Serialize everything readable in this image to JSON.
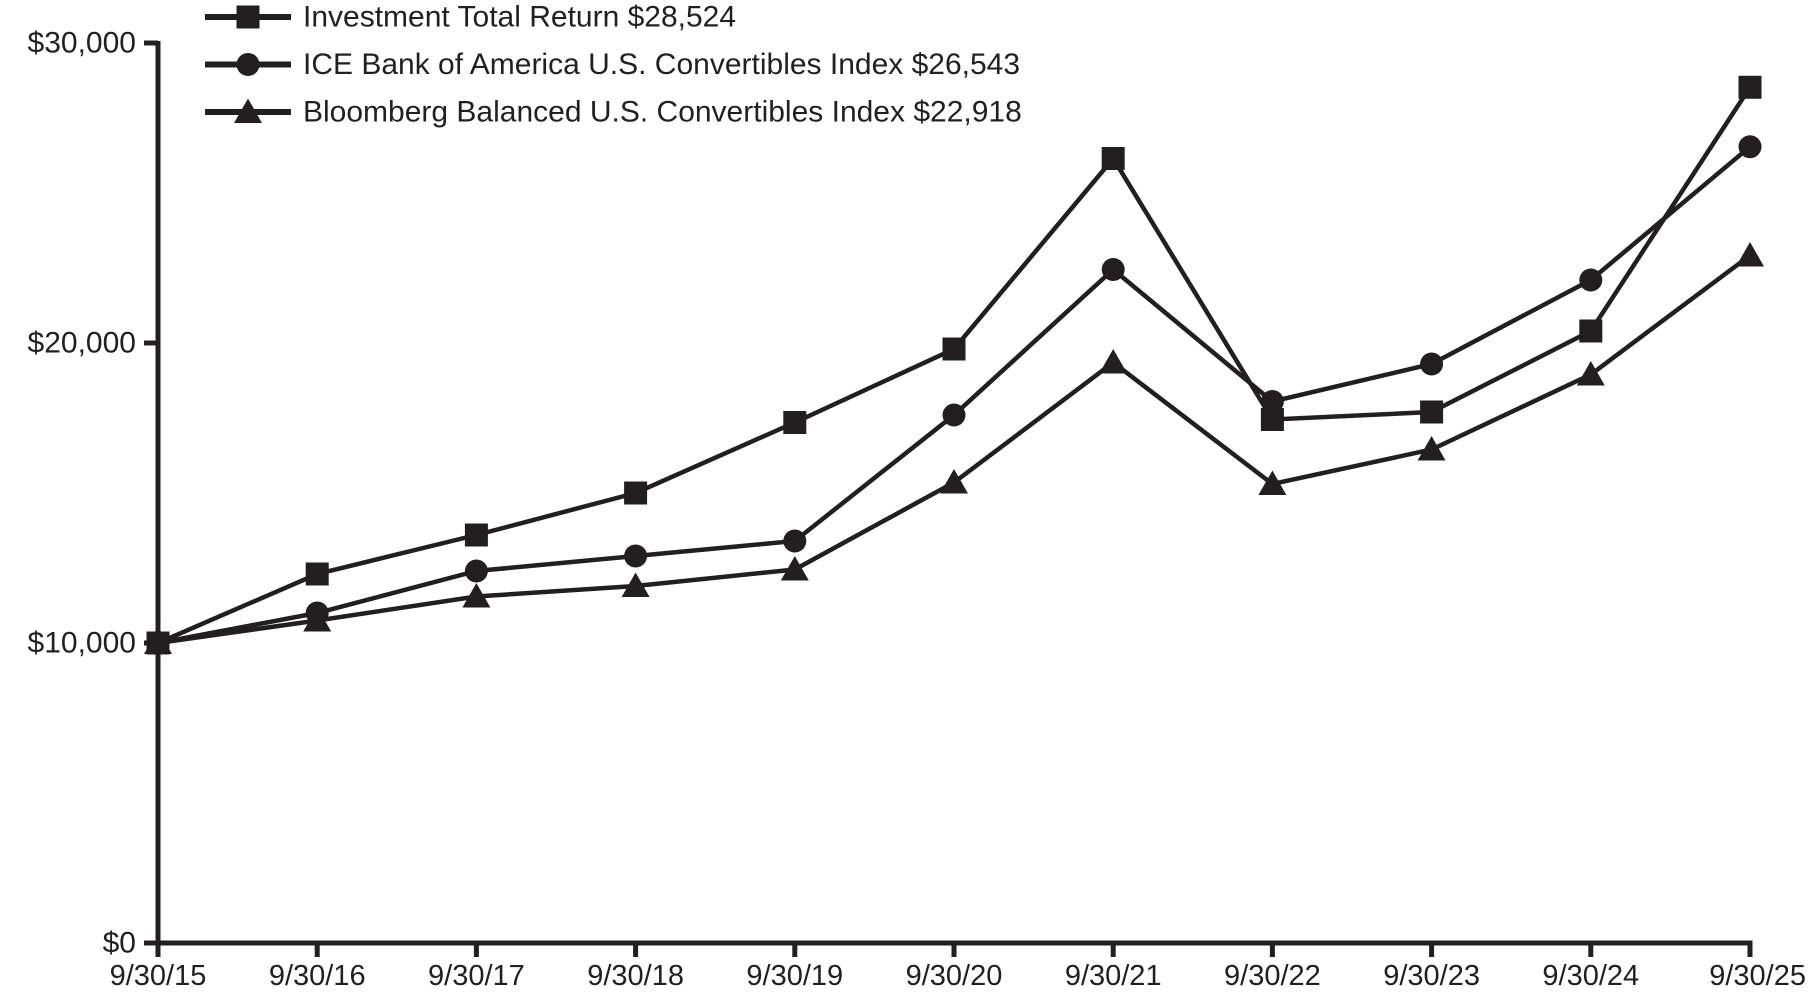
{
  "chart_data": {
    "type": "line",
    "title": "",
    "xlabel": "",
    "ylabel": "",
    "grid": false,
    "legend_position": "top-left",
    "line_color": "#231f20",
    "background_color": "#ffffff",
    "y_axis": {
      "range": [
        0,
        30000
      ],
      "ticks": [
        {
          "value": 0,
          "label": "$0"
        },
        {
          "value": 10000,
          "label": "$10,000"
        },
        {
          "value": 20000,
          "label": "$20,000"
        },
        {
          "value": 30000,
          "label": "$30,000"
        }
      ]
    },
    "categories": [
      "9/30/15",
      "9/30/16",
      "9/30/17",
      "9/30/18",
      "9/30/19",
      "9/30/20",
      "9/30/21",
      "9/30/22",
      "9/30/23",
      "9/30/24",
      "9/30/25"
    ],
    "series": [
      {
        "name": "Investment Total Return",
        "legend_label": "Investment Total Return $28,524",
        "final_value": 28524,
        "marker": "square",
        "values": [
          10000,
          12300,
          13600,
          15000,
          17350,
          19800,
          26150,
          17450,
          17700,
          20400,
          28524
        ]
      },
      {
        "name": "ICE Bank of America U.S. Convertibles Index",
        "legend_label": "ICE Bank of America U.S. Convertibles Index $26,543",
        "final_value": 26543,
        "marker": "circle",
        "values": [
          10000,
          11000,
          12400,
          12900,
          13400,
          17600,
          22450,
          18050,
          19300,
          22100,
          26543
        ]
      },
      {
        "name": "Bloomberg Balanced U.S. Convertibles Index",
        "legend_label": "Bloomberg Balanced U.S. Convertibles Index $22,918",
        "final_value": 22918,
        "marker": "triangle",
        "values": [
          10000,
          10750,
          11550,
          11900,
          12450,
          15350,
          19350,
          15300,
          16450,
          18950,
          22918
        ]
      }
    ]
  }
}
